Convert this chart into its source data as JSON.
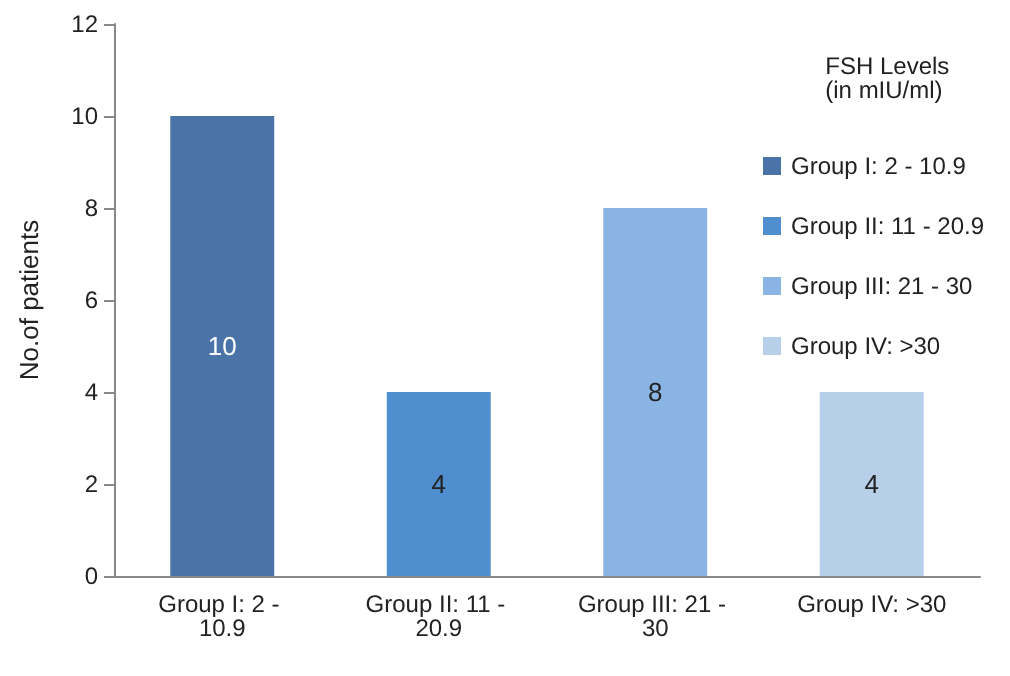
{
  "chart_data": {
    "type": "bar",
    "ylabel": "No.of patients",
    "legend_title": "FSH Levels (in mIU/ml)",
    "categories": [
      "Group I: 2 - 10.9",
      "Group II: 11 - 20.9",
      "Group III: 21 - 30",
      "Group IV: >30"
    ],
    "series": [
      {
        "name": "Group I: 2 - 10.9",
        "color": "#4a74a8",
        "values": [
          10,
          null,
          null,
          null
        ]
      },
      {
        "name": "Group II: 11 - 20.9",
        "color": "#4f8fcf",
        "values": [
          null,
          4,
          null,
          null
        ]
      },
      {
        "name": "Group III: 21 - 30",
        "color": "#8ab4e3",
        "values": [
          null,
          null,
          8,
          null
        ]
      },
      {
        "name": "Group IV: >30",
        "color": "#b8cfea",
        "values": [
          null,
          null,
          null,
          4
        ]
      }
    ],
    "ylim": [
      0,
      12
    ],
    "yticks": [
      0,
      2,
      4,
      6,
      8,
      10,
      12
    ],
    "data_labels": true,
    "legend": "top right",
    "grid": false
  }
}
